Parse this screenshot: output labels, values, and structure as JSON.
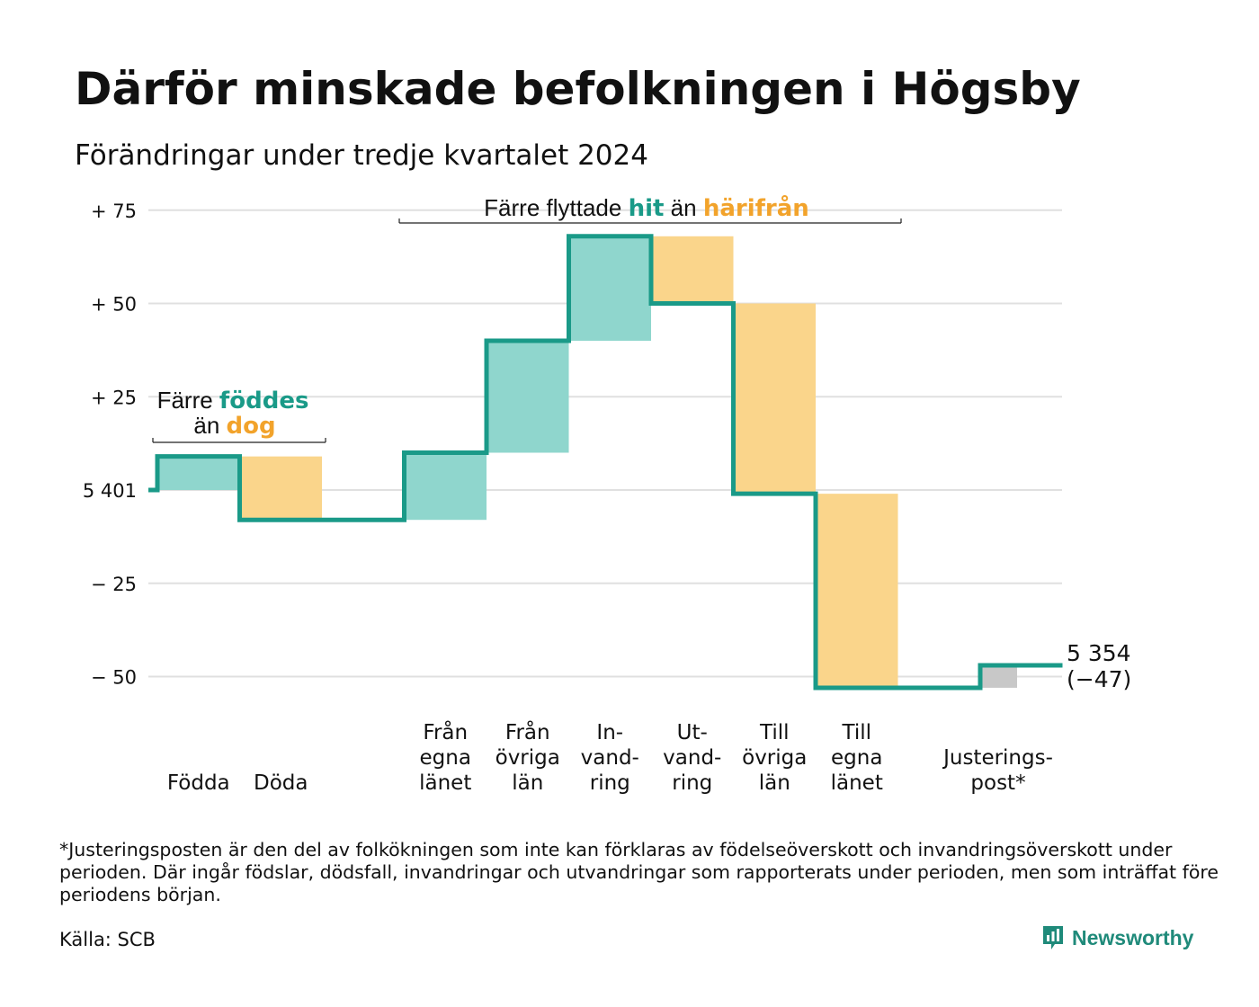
{
  "title": "Därför minskade befolkningen i Högsby",
  "subtitle": "Förändringar under tredje kvartalet 2024",
  "colors": {
    "line": "#1a9a88",
    "increase": "#8fd6cd",
    "decrease": "#fad58b",
    "adjustment": "#c8c8c8",
    "teal_text": "#1a9a88",
    "orange_text": "#f2a32b",
    "grid": "#e0e0e0",
    "brand": "#1f8a7a"
  },
  "annotations": {
    "births_deaths": {
      "prefix": "Färre",
      "highlight1": "föddes",
      "line2_prefix": "än",
      "highlight2": "dog"
    },
    "moves": {
      "prefix": "Färre flyttade",
      "highlight1": "hit",
      "middle": "än",
      "highlight2": "härifrån"
    }
  },
  "end_label": {
    "value": "5 354",
    "change": "(−47)"
  },
  "chart_data": {
    "type": "waterfall",
    "start_value": 5401,
    "start_label": "5 401",
    "ylim": [
      -53,
      75
    ],
    "yticks": [
      {
        "value": 75,
        "label": "+ 75"
      },
      {
        "value": 50,
        "label": "+ 50"
      },
      {
        "value": 25,
        "label": "+ 25"
      },
      {
        "value": 0,
        "label": "5 401"
      },
      {
        "value": -25,
        "label": "− 25"
      },
      {
        "value": -50,
        "label": "− 50"
      }
    ],
    "grid": true,
    "steps": [
      {
        "label": [
          "Födda"
        ],
        "delta": 9,
        "kind": "increase"
      },
      {
        "label": [
          "Döda"
        ],
        "delta": -17,
        "kind": "decrease"
      },
      {
        "label": [],
        "delta": 0,
        "kind": "gap"
      },
      {
        "label": [
          "Från",
          "egna",
          "länet"
        ],
        "delta": 18,
        "kind": "increase"
      },
      {
        "label": [
          "Från",
          "övriga",
          "län"
        ],
        "delta": 30,
        "kind": "increase"
      },
      {
        "label": [
          "In-",
          "vand-",
          "ring"
        ],
        "delta": 28,
        "kind": "increase"
      },
      {
        "label": [
          "Ut-",
          "vand-",
          "ring"
        ],
        "delta": -18,
        "kind": "decrease"
      },
      {
        "label": [
          "Till",
          "övriga",
          "län"
        ],
        "delta": -51,
        "kind": "decrease"
      },
      {
        "label": [
          "Till",
          "egna",
          "länet"
        ],
        "delta": -52,
        "kind": "decrease"
      },
      {
        "label": [],
        "delta": 0,
        "kind": "gap"
      },
      {
        "label": [
          "Justerings-",
          "post*"
        ],
        "delta": 6,
        "kind": "adjustment"
      }
    ],
    "end_value": 5354,
    "total_change": -47
  },
  "footnote": "*Justeringsposten är den del av folkökningen som inte kan förklaras av födelseöverskott och invandringsöverskott under perioden. Där ingår födslar, dödsfall, invandringar och utvandringar som rapporterats under perioden, men som inträffat före periodens början.",
  "source": "Källa: SCB",
  "brand": {
    "name": "Newsworthy",
    "icon": "newsworthy-logo-icon"
  }
}
